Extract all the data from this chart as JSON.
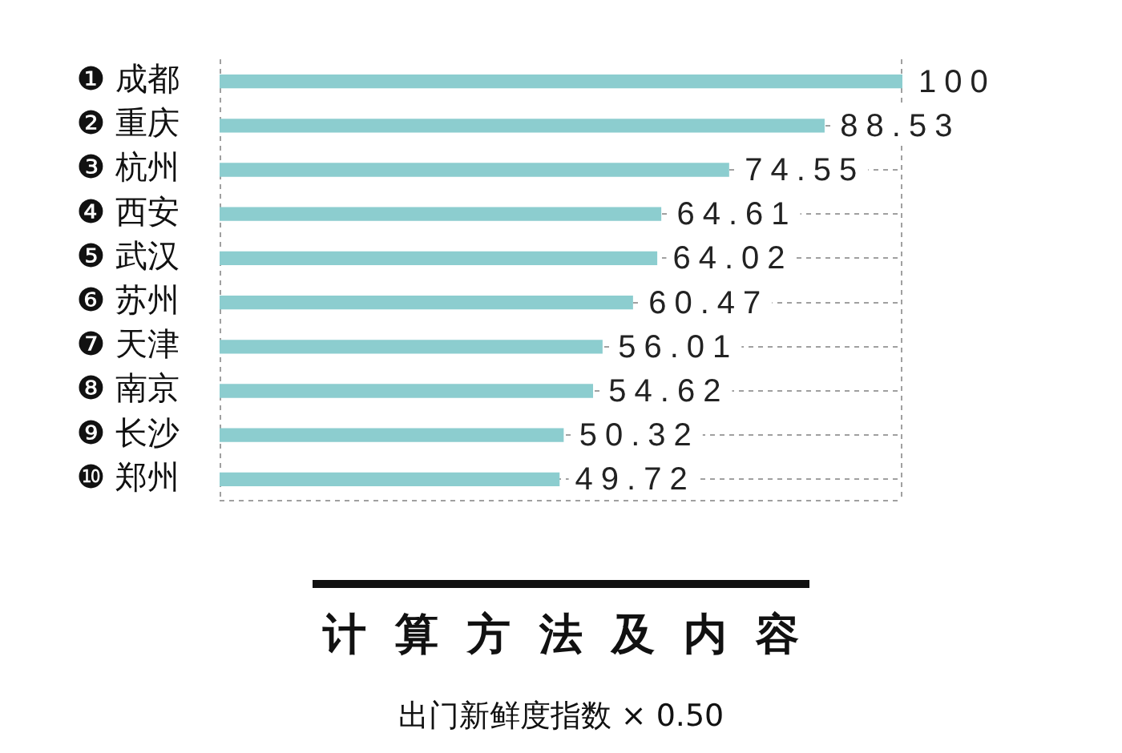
{
  "chart_data": {
    "type": "bar",
    "orientation": "horizontal",
    "categories": [
      "❶ 成都",
      "❷ 重庆",
      "❸ 杭州",
      "❹ 西安",
      "❺ 武汉",
      "❻ 苏州",
      "❼ 天津",
      "❽ 南京",
      "❾ 长沙",
      "❿ 郑州"
    ],
    "values": [
      100,
      88.53,
      74.55,
      64.61,
      64.02,
      60.47,
      56.01,
      54.62,
      50.32,
      49.72
    ],
    "color": "#8ccdcf",
    "xlim": [
      0,
      100
    ],
    "grid": "y",
    "tick_labels": "y",
    "data_labels": true,
    "annotations": [
      "计算方法及内容",
      "出门新鲜度指数 × 0.50"
    ]
  }
}
